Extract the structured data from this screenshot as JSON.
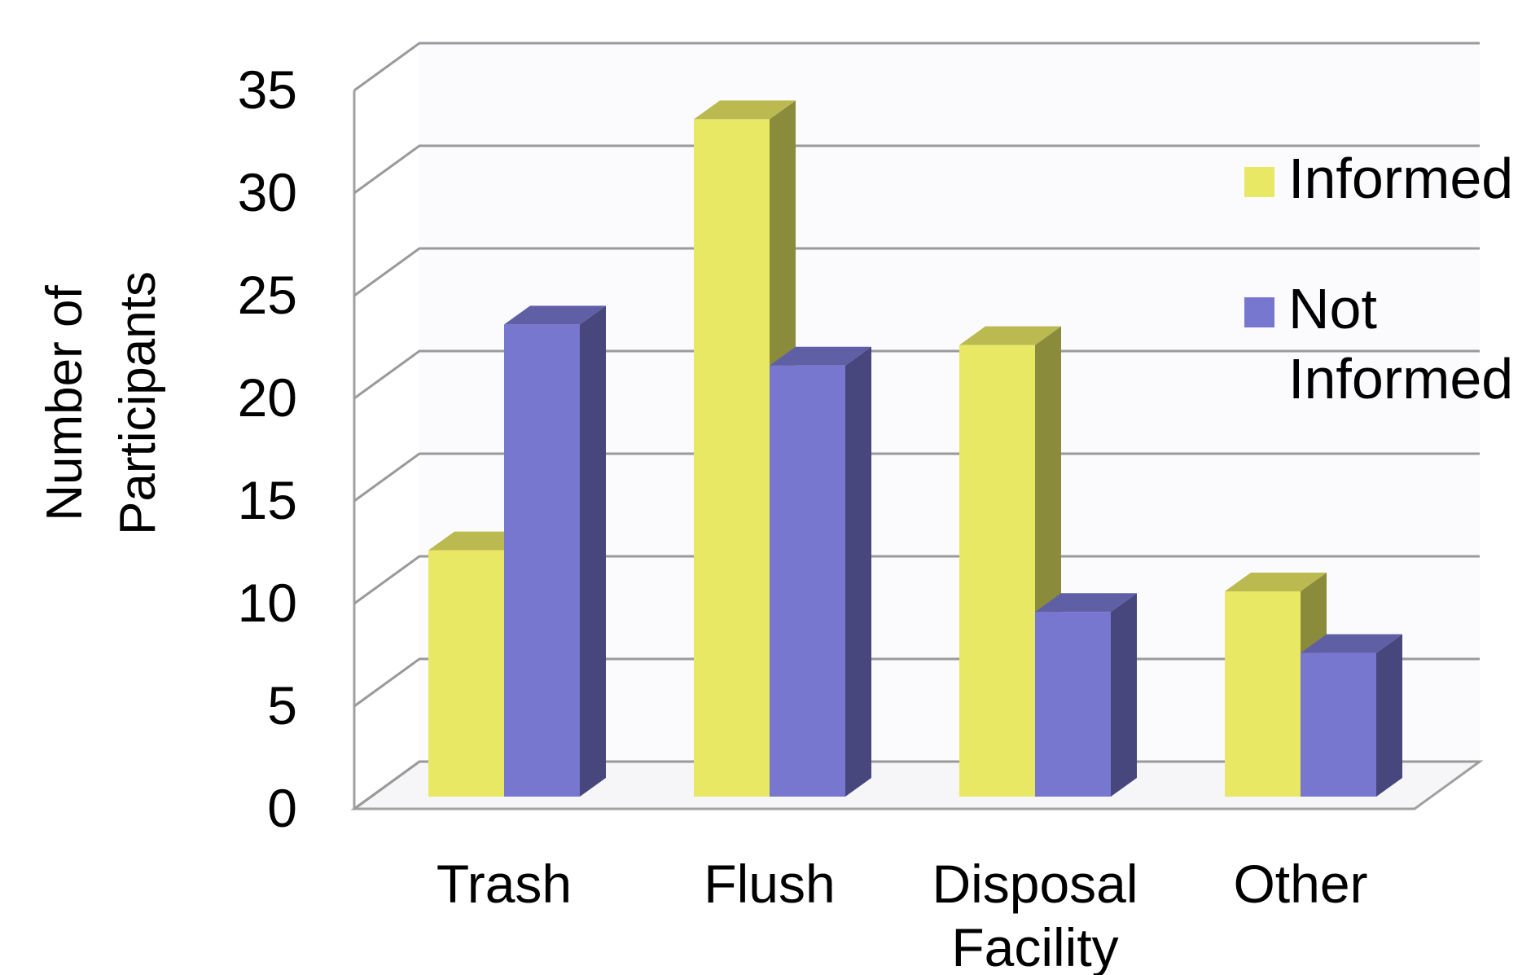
{
  "chart_data": {
    "type": "bar",
    "title": "",
    "xlabel": "",
    "ylabel": "Number of\nParticipants",
    "categories": [
      "Trash",
      "Flush",
      "Disposal\nFacility",
      "Other"
    ],
    "series": [
      {
        "name": "Informed",
        "values": [
          12,
          33,
          22,
          10
        ],
        "color": "#E8E864"
      },
      {
        "name": "Not\nInformed",
        "values": [
          23,
          21,
          9,
          7
        ],
        "color": "#7777D0"
      }
    ],
    "ylim": [
      0,
      35
    ],
    "yticks": [
      "0",
      "5",
      "10",
      "15",
      "20",
      "25",
      "30",
      "35"
    ],
    "grid": true,
    "legend_position": "right",
    "style": "3d-column"
  }
}
